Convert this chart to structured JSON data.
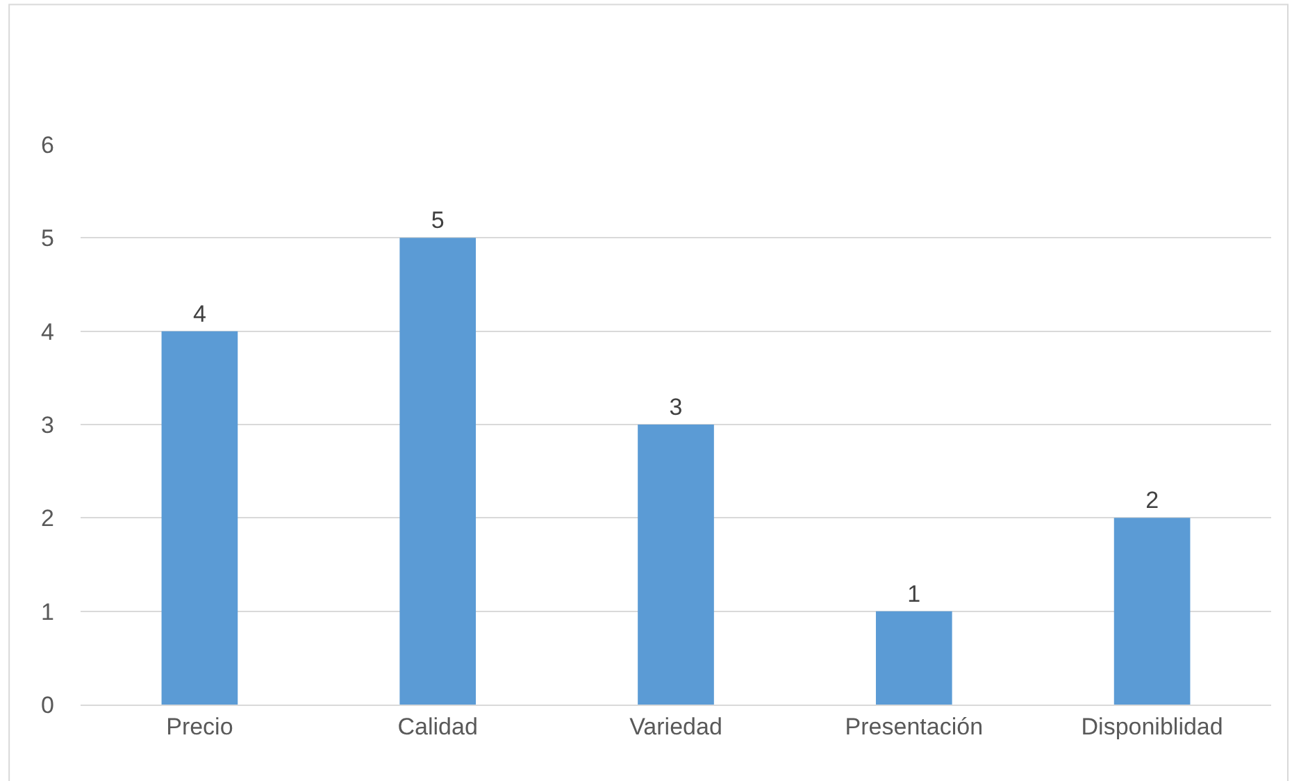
{
  "chart_data": {
    "type": "bar",
    "categories": [
      "Precio",
      "Calidad",
      "Variedad",
      "Presentación",
      "Disponiblidad"
    ],
    "values": [
      4,
      5,
      3,
      1,
      2
    ],
    "color": "#5b9bd5",
    "ylim": [
      0,
      6
    ],
    "yticks": [
      0,
      1,
      2,
      3,
      4,
      5,
      6
    ],
    "grid": "y",
    "data_labels": true
  }
}
